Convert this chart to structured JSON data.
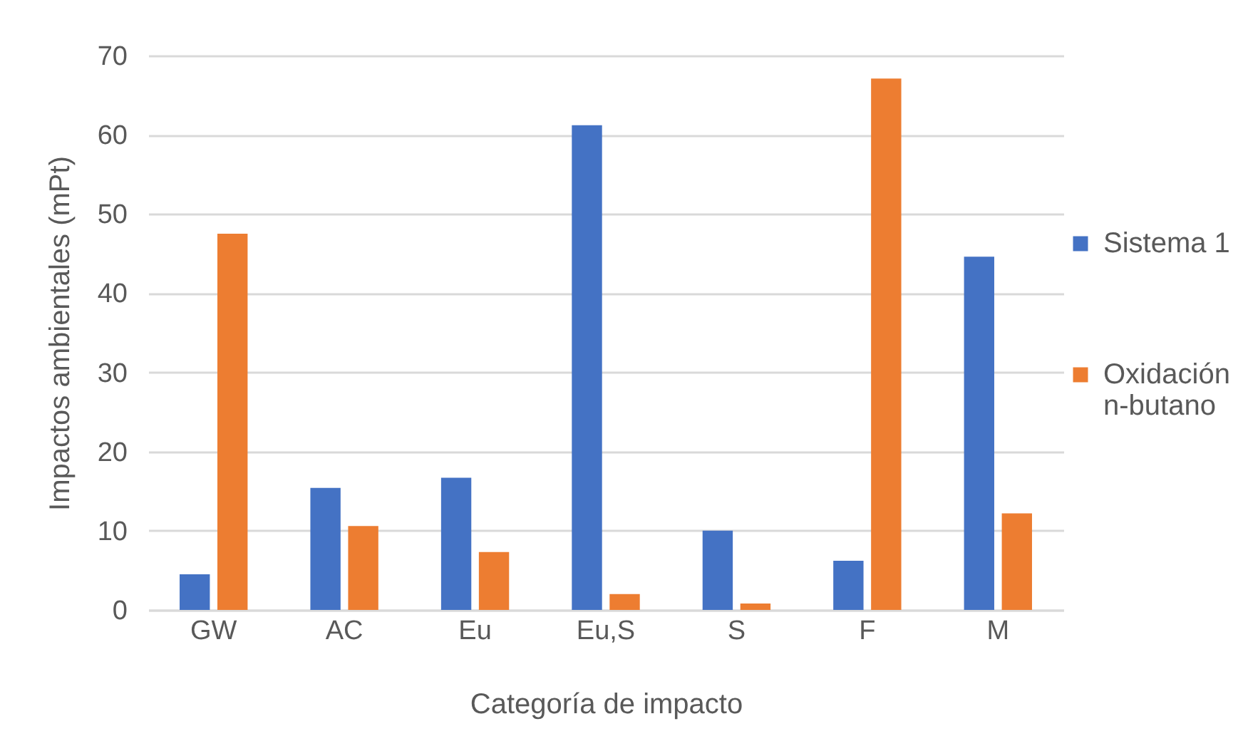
{
  "chart_data": {
    "type": "bar",
    "xlabel": "Categoría de impacto",
    "ylabel": "Impactos ambientales (mPt)",
    "categories": [
      "GW",
      "AC",
      "Eu",
      "Eu,S",
      "S",
      "F",
      "M"
    ],
    "series": [
      {
        "name": "Sistema 1",
        "color": "#4472c4",
        "values": [
          4.5,
          15.4,
          16.7,
          61.2,
          10.0,
          6.2,
          44.6
        ]
      },
      {
        "name": "Oxidación n-butano",
        "color": "#ed7d31",
        "values": [
          47.5,
          10.6,
          7.3,
          2.0,
          0.8,
          67.1,
          12.2
        ]
      }
    ],
    "ylim": [
      0,
      70
    ],
    "yticks": [
      0,
      10,
      20,
      30,
      40,
      50,
      60,
      70
    ],
    "grid": "y",
    "legend": "right"
  }
}
